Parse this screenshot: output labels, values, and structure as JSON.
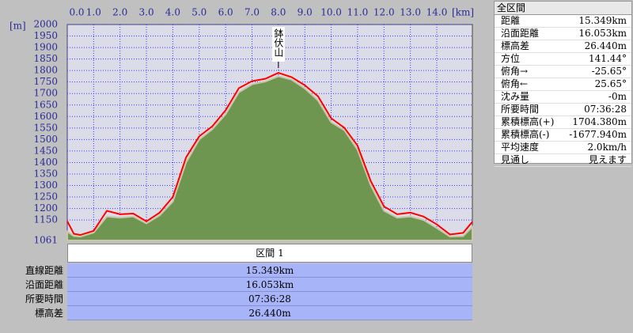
{
  "chart_data": {
    "type": "area",
    "x_label": "[km]",
    "y_label": "[m]",
    "xlim": [
      0,
      15.349
    ],
    "ylim": [
      1061,
      2000
    ],
    "xticks": [
      {
        "value": 0,
        "label": "0.0"
      },
      {
        "value": 1,
        "label": "1.0"
      },
      {
        "value": 2,
        "label": "2.0"
      },
      {
        "value": 3,
        "label": "3.0"
      },
      {
        "value": 4,
        "label": "4.0"
      },
      {
        "value": 5,
        "label": "5.0"
      },
      {
        "value": 6,
        "label": "6.0"
      },
      {
        "value": 7,
        "label": "7.0"
      },
      {
        "value": 8,
        "label": "8.0"
      },
      {
        "value": 9,
        "label": "9.0"
      },
      {
        "value": 10,
        "label": "10.0"
      },
      {
        "value": 11,
        "label": "11.0"
      },
      {
        "value": 12,
        "label": "12.0"
      },
      {
        "value": 13,
        "label": "13.0"
      },
      {
        "value": 14,
        "label": "14.0"
      }
    ],
    "yticks": [
      1061,
      1150,
      1200,
      1250,
      1300,
      1350,
      1400,
      1450,
      1500,
      1550,
      1600,
      1650,
      1700,
      1750,
      1800,
      1850,
      1900,
      1950,
      2000
    ],
    "grid": true,
    "annotations": [
      {
        "text": "鉢伏山",
        "x": 8.0
      }
    ],
    "x": [
      0,
      0.25,
      0.5,
      1,
      1.5,
      2,
      2.5,
      3,
      3.5,
      4,
      4.5,
      5,
      5.5,
      6,
      6.5,
      7,
      7.5,
      8,
      8.5,
      9,
      9.5,
      10,
      10.5,
      11,
      11.5,
      12,
      12.5,
      13,
      13.5,
      14,
      14.5,
      15,
      15.349
    ],
    "series": [
      {
        "kind": "area",
        "color": "#6e9650",
        "values": [
          1100,
          1080,
          1078,
          1095,
          1165,
          1160,
          1165,
          1135,
          1170,
          1230,
          1400,
          1500,
          1545,
          1610,
          1705,
          1740,
          1752,
          1775,
          1760,
          1722,
          1670,
          1575,
          1540,
          1455,
          1300,
          1190,
          1160,
          1165,
          1150,
          1115,
          1078,
          1080,
          1120
        ]
      },
      {
        "kind": "line",
        "color": "#ff0000",
        "values": [
          1145,
          1090,
          1085,
          1103,
          1190,
          1175,
          1178,
          1144,
          1182,
          1250,
          1422,
          1514,
          1558,
          1627,
          1723,
          1754,
          1764,
          1790,
          1771,
          1736,
          1688,
          1592,
          1551,
          1473,
          1319,
          1209,
          1175,
          1182,
          1165,
          1131,
          1087,
          1094,
          1142
        ]
      }
    ]
  },
  "section_table": {
    "title": "区間 1",
    "rows": [
      [
        "直線距離",
        "15.349km"
      ],
      [
        "沿面距離",
        "16.053km"
      ],
      [
        "所要時間",
        "07:36:28"
      ],
      [
        "標高差",
        "26.440m"
      ]
    ]
  },
  "summary_panel": {
    "title": "全区間",
    "rows": [
      [
        "距離",
        "15.349km"
      ],
      [
        "沿面距離",
        "16.053km"
      ],
      [
        "標高差",
        "26.440m"
      ],
      [
        "方位",
        "141.44°"
      ],
      [
        "俯角→",
        "-25.65°"
      ],
      [
        "俯角←",
        "25.65°"
      ],
      [
        "沈み量",
        "-0m"
      ],
      [
        "所要時間",
        "07:36:28"
      ],
      [
        "累積標高(+)",
        "1704.380m"
      ],
      [
        "累積標高(-)",
        "-1677.940m"
      ],
      [
        "平均速度",
        "2.0km/h"
      ],
      [
        "見通し",
        "見えます"
      ]
    ]
  }
}
